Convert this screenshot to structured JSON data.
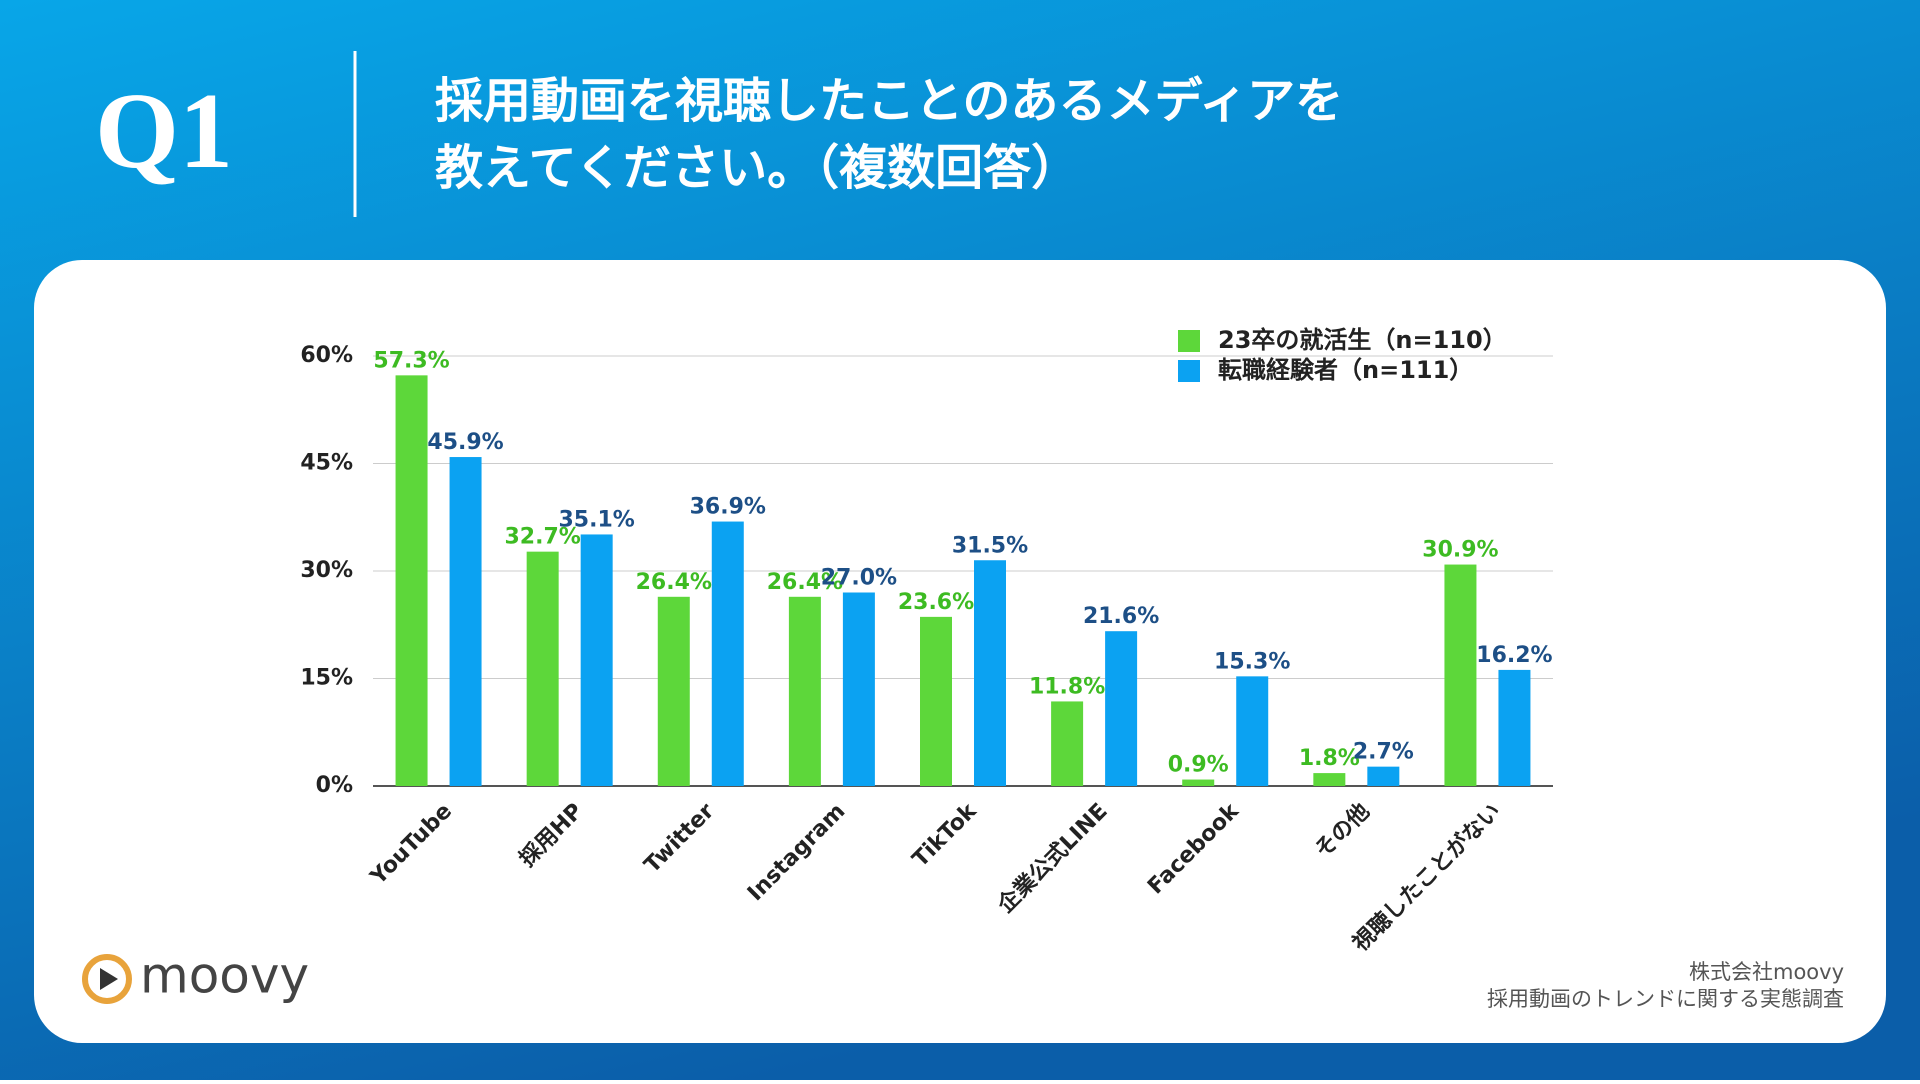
{
  "header": {
    "number": "Q1",
    "title": [
      "採用動画を視聴したことのあるメディアを",
      "教えてください。（複数回答）"
    ]
  },
  "chart_data": {
    "type": "bar",
    "categories": [
      "YouTube",
      "採用HP",
      "Twitter",
      "Instagram",
      "TikTok",
      "企業公式LINE",
      "Facebook",
      "その他",
      "視聴したことがない"
    ],
    "series": [
      {
        "name": "23卒の就活生（n=110）",
        "color": "#5dd73a",
        "label_color": "#3dbb22",
        "values": [
          57.3,
          32.7,
          26.4,
          26.4,
          23.6,
          11.8,
          0.9,
          1.8,
          30.9
        ],
        "value_labels": [
          "57.3%",
          "32.7%",
          "26.4%",
          "26.4%",
          "23.6%",
          "11.8%",
          "0.9%",
          "1.8%",
          "30.9%"
        ]
      },
      {
        "name": "転職経験者（n=111）",
        "color": "#0ba2f2",
        "label_color": "#1d4f86",
        "values": [
          45.9,
          35.1,
          36.9,
          27.0,
          31.5,
          21.6,
          15.3,
          2.7,
          16.2
        ],
        "value_labels": [
          "45.9%",
          "35.1%",
          "36.9%",
          "27.0%",
          "31.5%",
          "21.6%",
          "15.3%",
          "2.7%",
          "16.2%"
        ]
      }
    ],
    "ylim": [
      0,
      60
    ],
    "yticks": [
      {
        "value": 0,
        "label": "0%"
      },
      {
        "value": 15,
        "label": "15%"
      },
      {
        "value": 30,
        "label": "30%"
      },
      {
        "value": 45,
        "label": "45%"
      },
      {
        "value": 60,
        "label": "60%"
      }
    ],
    "grid": true,
    "legend": "upper right"
  },
  "footer": {
    "logo": "moovy",
    "credit": [
      "株式会社moovy",
      "採用動画のトレンドに関する実態調査"
    ]
  }
}
